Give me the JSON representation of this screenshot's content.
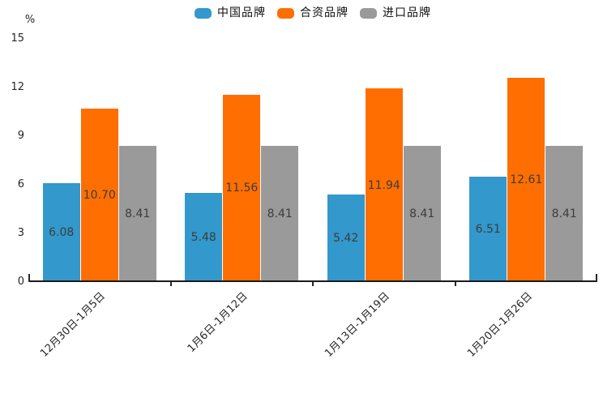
{
  "chart_data": {
    "type": "bar",
    "title": "",
    "ylabel": "%",
    "xlabel": "",
    "ylim": [
      0,
      15
    ],
    "yticks": [
      0,
      3,
      6,
      9,
      12,
      15
    ],
    "grid": false,
    "legend_position": "top-center",
    "value_label_decimals": 2,
    "categories": [
      "12月30日-1月5日",
      "1月6日-1月12日",
      "1月13日-1月19日",
      "1月20日-1月26日"
    ],
    "series": [
      {
        "name": "中国品牌",
        "color": "#3398cb",
        "values": [
          6.08,
          5.48,
          5.42,
          6.51
        ]
      },
      {
        "name": "合资品牌",
        "color": "#ff6e00",
        "values": [
          10.7,
          11.56,
          11.94,
          12.61
        ]
      },
      {
        "name": "进口品牌",
        "color": "#9a9a9a",
        "values": [
          8.41,
          8.41,
          8.41,
          8.41
        ]
      }
    ],
    "colors": {
      "axis": "#1a1a1a",
      "tick_text": "#262626",
      "value_label_text": "#3d3d3d",
      "background": "#ffffff"
    }
  }
}
